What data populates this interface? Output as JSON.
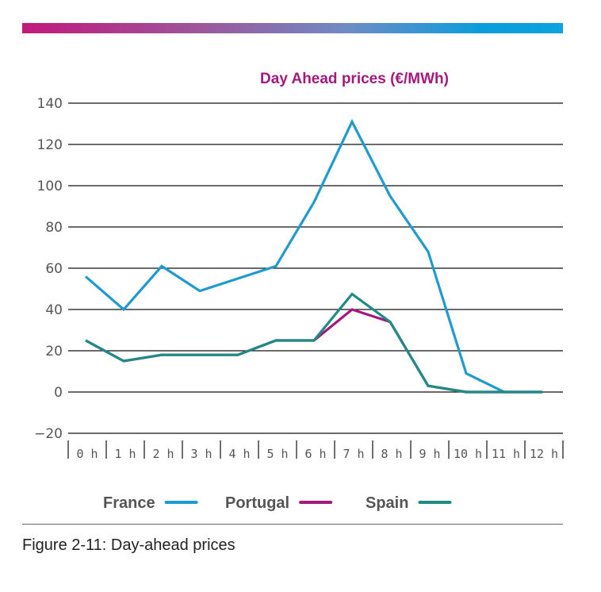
{
  "figure": {
    "caption": "Figure 2-11: Day-ahead prices"
  },
  "colors": {
    "title": "#a3197f",
    "gradient_start": "#c2187d",
    "gradient_end": "#0ca3de"
  },
  "chart_data": {
    "type": "line",
    "title": "Day Ahead prices (€/MWh)",
    "xlabel": "",
    "ylabel": "",
    "categories": [
      "0 h",
      "1 h",
      "2 h",
      "3 h",
      "4 h",
      "5 h",
      "6 h",
      "7 h",
      "8 h",
      "9 h",
      "10 h",
      "11 h",
      "12 h"
    ],
    "ylim": [
      -20,
      140
    ],
    "yticks": [
      -20,
      0,
      20,
      40,
      60,
      80,
      100,
      120,
      140
    ],
    "ytick_labels": [
      "−20",
      "0",
      "20",
      "40",
      "60",
      "80",
      "100",
      "120",
      "140"
    ],
    "grid": true,
    "legend_position": "bottom",
    "series": [
      {
        "name": "France",
        "color": "#1f9bd1",
        "values": [
          56,
          40,
          61,
          49,
          55,
          61,
          92,
          131,
          95,
          68,
          9,
          0,
          0
        ]
      },
      {
        "name": "Portugal",
        "color": "#a3197f",
        "values": [
          25,
          15,
          18,
          18,
          18,
          25,
          25,
          40,
          34,
          3,
          0,
          0,
          0
        ]
      },
      {
        "name": "Spain",
        "color": "#1e8c84",
        "values": [
          25,
          15,
          18,
          18,
          18,
          25,
          25,
          47.5,
          34,
          3,
          0,
          0,
          0
        ]
      }
    ]
  }
}
